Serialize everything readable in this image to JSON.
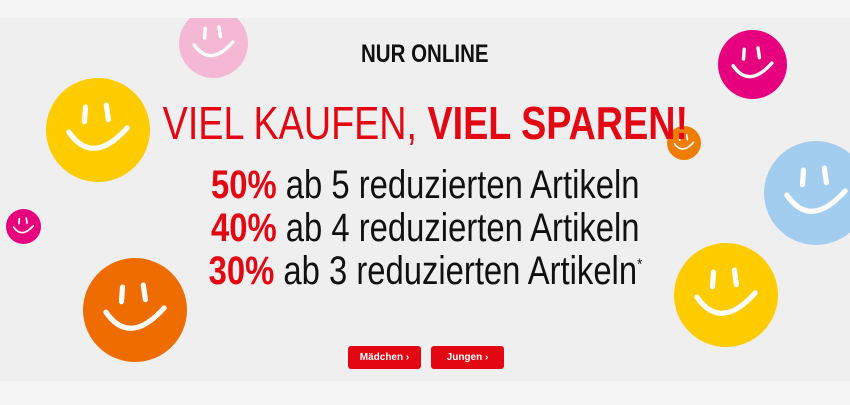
{
  "banner": {
    "eyebrow": "NUR ONLINE",
    "headline_light": "VIEL KAUFEN,",
    "headline_bold": "VIEL SPAREN!",
    "offers": [
      {
        "percent": "50%",
        "text": "ab 5 reduzierten Artikeln"
      },
      {
        "percent": "40%",
        "text": "ab 4 reduzierten Artikeln"
      },
      {
        "percent": "30%",
        "text": "ab 3 reduzierten Artikeln",
        "footnote": "*"
      }
    ],
    "buttons": [
      {
        "label": "Mädchen ›"
      },
      {
        "label": "Jungen ›"
      }
    ]
  },
  "colors": {
    "accent": "#e30613",
    "pink": "#f4b8d4",
    "yellow": "#ffcc00",
    "magenta": "#e6007e",
    "orange": "#ef7d00",
    "blue": "#a3cdef",
    "background": "#efefef"
  },
  "decorations": [
    "smiley-icon"
  ]
}
